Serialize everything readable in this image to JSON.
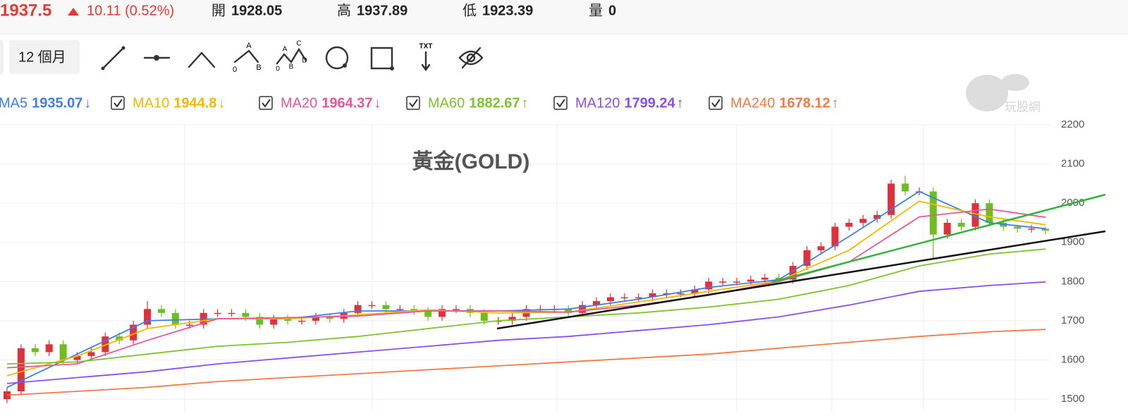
{
  "header": {
    "last": "1937.5",
    "change": "10.11 (0.52%)",
    "stats": [
      {
        "label": "開",
        "value": "1928.05"
      },
      {
        "label": "高",
        "value": "1937.89"
      },
      {
        "label": "低",
        "value": "1923.39"
      },
      {
        "label": "量",
        "value": "0"
      }
    ]
  },
  "toolbar": {
    "period": "12 個月",
    "txt_icon": "TXT",
    "abc": [
      "A",
      "0",
      "B"
    ],
    "abcd": [
      "A",
      "C",
      "0",
      "B",
      "D"
    ]
  },
  "watermark": "玩股網",
  "chart_data": {
    "type": "candlestick",
    "title": "黃金(GOLD)",
    "up_color": "#e0303a",
    "down_color": "#6cbf1f",
    "open": [
      1500,
      1520,
      1630,
      1620,
      1640,
      1600,
      1610,
      1620,
      1660,
      1650,
      1690,
      1730,
      1720,
      1690,
      1690,
      1720,
      1720,
      1720,
      1710,
      1690,
      1705,
      1700,
      1700,
      1710,
      1705,
      1720,
      1740,
      1740,
      1730,
      1730,
      1725,
      1710,
      1730,
      1730,
      1720,
      1700,
      1700,
      1710,
      1730,
      1730,
      1730,
      1720,
      1740,
      1750,
      1760,
      1760,
      1760,
      1770,
      1770,
      1770,
      1780,
      1800,
      1800,
      1800,
      1805,
      1810,
      1805,
      1840,
      1880,
      1890,
      1940,
      1950,
      1960,
      1970,
      2050,
      2030,
      2030,
      1920,
      1950,
      1940,
      2000,
      1950,
      1940,
      1935,
      1935
    ],
    "high": [
      1530,
      1640,
      1640,
      1650,
      1650,
      1620,
      1630,
      1670,
      1670,
      1700,
      1750,
      1740,
      1730,
      1700,
      1730,
      1730,
      1730,
      1730,
      1720,
      1715,
      1715,
      1710,
      1720,
      1720,
      1730,
      1750,
      1750,
      1750,
      1740,
      1740,
      1735,
      1740,
      1740,
      1740,
      1730,
      1710,
      1720,
      1740,
      1740,
      1740,
      1740,
      1750,
      1760,
      1770,
      1770,
      1770,
      1780,
      1780,
      1780,
      1790,
      1810,
      1810,
      1810,
      1815,
      1820,
      1820,
      1850,
      1890,
      1900,
      1950,
      1960,
      1970,
      1980,
      2060,
      2070,
      2040,
      2040,
      1960,
      1960,
      2010,
      2010,
      1960,
      1945,
      1945,
      1940
    ],
    "low": [
      1490,
      1510,
      1610,
      1610,
      1590,
      1590,
      1600,
      1610,
      1640,
      1640,
      1680,
      1710,
      1680,
      1680,
      1680,
      1710,
      1710,
      1700,
      1680,
      1680,
      1690,
      1690,
      1690,
      1695,
      1695,
      1710,
      1730,
      1720,
      1720,
      1715,
      1700,
      1700,
      1720,
      1710,
      1690,
      1690,
      1690,
      1700,
      1720,
      1720,
      1710,
      1710,
      1730,
      1740,
      1750,
      1750,
      1750,
      1760,
      1760,
      1760,
      1770,
      1790,
      1790,
      1790,
      1795,
      1795,
      1795,
      1830,
      1870,
      1880,
      1930,
      1940,
      1950,
      1960,
      2020,
      2020,
      1860,
      1910,
      1930,
      1930,
      1940,
      1930,
      1925,
      1925,
      1920
    ],
    "close": [
      1520,
      1630,
      1620,
      1640,
      1600,
      1610,
      1620,
      1660,
      1650,
      1690,
      1730,
      1720,
      1690,
      1690,
      1720,
      1720,
      1720,
      1710,
      1690,
      1705,
      1700,
      1700,
      1710,
      1705,
      1720,
      1740,
      1740,
      1730,
      1730,
      1725,
      1710,
      1730,
      1730,
      1720,
      1700,
      1700,
      1710,
      1730,
      1730,
      1730,
      1720,
      1740,
      1750,
      1760,
      1760,
      1760,
      1770,
      1770,
      1770,
      1780,
      1800,
      1800,
      1800,
      1805,
      1810,
      1805,
      1840,
      1880,
      1890,
      1940,
      1950,
      1960,
      1970,
      2050,
      2030,
      2030,
      1920,
      1950,
      1940,
      2000,
      1950,
      1940,
      1935,
      1935,
      1930
    ],
    "ma_index": [
      0,
      5,
      10,
      15,
      20,
      25,
      30,
      35,
      40,
      45,
      50,
      55,
      60,
      65,
      70,
      74
    ],
    "series": [
      {
        "name": "MA5",
        "color": "#3d7fe6",
        "current": 1935.07,
        "arrow": "↓",
        "values": [
          1530,
          1615,
          1700,
          1705,
          1705,
          1725,
          1725,
          1725,
          1730,
          1755,
          1785,
          1805,
          1915,
          2030,
          1950,
          1935
        ]
      },
      {
        "name": "MA10",
        "color": "#f5b800",
        "current": 1944.8,
        "arrow": "↓",
        "values": [
          1560,
          1610,
          1680,
          1705,
          1705,
          1715,
          1728,
          1720,
          1722,
          1748,
          1775,
          1802,
          1880,
          2005,
          1965,
          1945
        ]
      },
      {
        "name": "MA20",
        "color": "#e9559a",
        "current": 1964.37,
        "arrow": "↓",
        "values": [
          1580,
          1590,
          1650,
          1705,
          1708,
          1712,
          1725,
          1725,
          1722,
          1740,
          1765,
          1800,
          1850,
          1965,
          1985,
          1964
        ]
      },
      {
        "name": "MA60",
        "color": "#7cc42a",
        "current": 1882.67,
        "arrow": "↑",
        "values": [
          1590,
          1595,
          1615,
          1635,
          1645,
          1660,
          1680,
          1700,
          1710,
          1720,
          1735,
          1755,
          1790,
          1840,
          1870,
          1883
        ]
      },
      {
        "name": "MA120",
        "color": "#8a4fe8",
        "current": 1799.24,
        "arrow": "↑",
        "values": [
          1540,
          1555,
          1570,
          1590,
          1605,
          1620,
          1635,
          1650,
          1660,
          1675,
          1690,
          1710,
          1740,
          1775,
          1790,
          1799
        ]
      },
      {
        "name": "MA240",
        "color": "#f47a44",
        "current": 1678.12,
        "arrow": "↑",
        "values": [
          1510,
          1520,
          1530,
          1545,
          1555,
          1565,
          1575,
          1585,
          1595,
          1605,
          1615,
          1630,
          1645,
          1660,
          1672,
          1678
        ]
      }
    ],
    "ylim": [
      1466,
      2200
    ],
    "yticks": [
      1500,
      1600,
      1700,
      1800,
      1900,
      2000,
      2100,
      2200
    ],
    "grid": true
  }
}
